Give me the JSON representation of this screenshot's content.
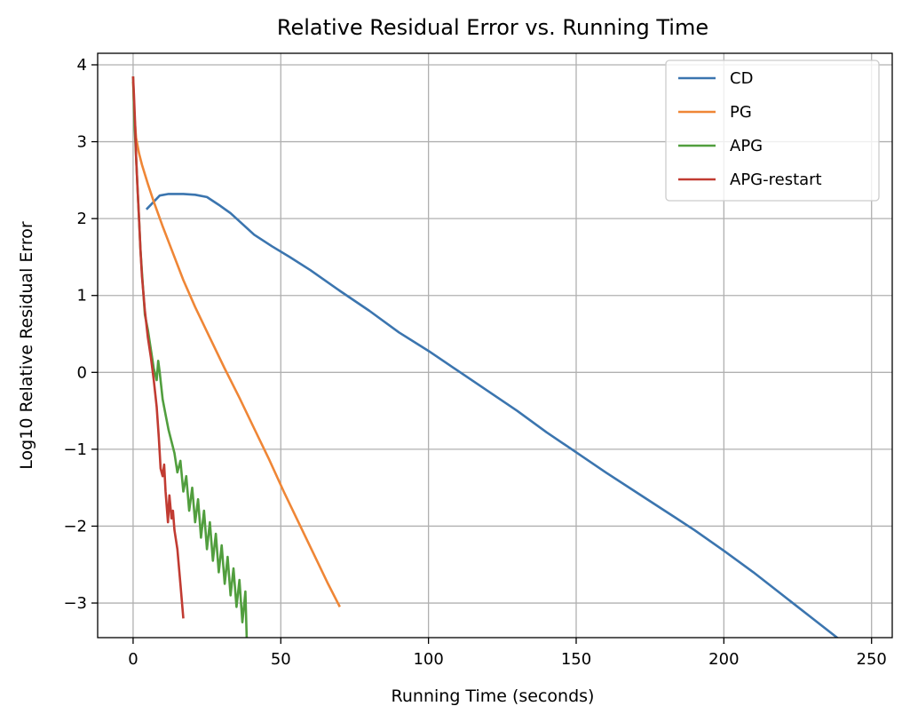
{
  "chart_data": {
    "type": "line",
    "title": "Relative Residual Error vs. Running Time",
    "xlabel": "Running Time (seconds)",
    "ylabel": "Log10 Relative Residual Error",
    "xlim": [
      -12,
      257
    ],
    "ylim": [
      -3.45,
      4.15
    ],
    "xticks": [
      0,
      50,
      100,
      150,
      200,
      250
    ],
    "xtick_labels": [
      "0",
      "50",
      "100",
      "150",
      "200",
      "250"
    ],
    "yticks": [
      -3,
      -2,
      -1,
      0,
      1,
      2,
      3,
      4
    ],
    "ytick_labels": [
      "−3",
      "−2",
      "−1",
      "0",
      "1",
      "2",
      "3",
      "4"
    ],
    "grid": true,
    "legend_position": "top-right",
    "series": [
      {
        "name": "CD",
        "color": "#3b75af",
        "x": [
          4.5,
          9,
          12,
          17,
          21,
          25,
          29,
          33,
          37,
          41,
          47,
          53,
          60,
          70,
          80,
          90,
          100,
          110,
          120,
          130,
          140,
          150,
          160,
          170,
          180,
          190,
          200,
          210,
          220,
          230,
          240,
          245
        ],
        "y": [
          2.12,
          2.3,
          2.32,
          2.32,
          2.31,
          2.28,
          2.18,
          2.07,
          1.93,
          1.79,
          1.64,
          1.5,
          1.33,
          1.06,
          0.8,
          0.52,
          0.28,
          0.02,
          -0.24,
          -0.5,
          -0.78,
          -1.04,
          -1.3,
          -1.55,
          -1.8,
          -2.05,
          -2.32,
          -2.6,
          -2.9,
          -3.2,
          -3.5,
          -3.65
        ]
      },
      {
        "name": "PG",
        "color": "#ef8636",
        "x": [
          0,
          0.5,
          1,
          2,
          3,
          5,
          7,
          10,
          13,
          17,
          21,
          26,
          31,
          36,
          41,
          46,
          51,
          56,
          61,
          66,
          70
        ],
        "y": [
          3.78,
          3.3,
          3.05,
          2.85,
          2.7,
          2.45,
          2.22,
          1.9,
          1.6,
          1.2,
          0.85,
          0.45,
          0.05,
          -0.33,
          -0.73,
          -1.13,
          -1.55,
          -1.95,
          -2.35,
          -2.75,
          -3.05
        ]
      },
      {
        "name": "APG",
        "color": "#519e3e",
        "x": [
          0,
          0.5,
          1,
          1.5,
          2,
          2.5,
          3,
          4,
          5,
          6,
          7,
          8,
          8.5,
          9,
          10,
          11,
          12,
          13,
          14,
          15,
          16,
          17,
          18,
          19,
          20,
          21,
          22,
          23,
          24,
          25,
          26,
          27,
          28,
          29,
          30,
          31,
          32,
          33,
          34,
          35,
          36,
          37,
          38,
          38.5,
          39
        ],
        "y": [
          3.85,
          3.2,
          2.8,
          2.4,
          2.0,
          1.6,
          1.3,
          0.75,
          0.55,
          0.3,
          0.05,
          -0.1,
          0.15,
          0.0,
          -0.35,
          -0.55,
          -0.75,
          -0.9,
          -1.05,
          -1.3,
          -1.15,
          -1.55,
          -1.35,
          -1.8,
          -1.5,
          -1.95,
          -1.65,
          -2.15,
          -1.8,
          -2.3,
          -1.95,
          -2.45,
          -2.1,
          -2.6,
          -2.25,
          -2.75,
          -2.4,
          -2.9,
          -2.55,
          -3.05,
          -2.7,
          -3.25,
          -2.85,
          -3.5,
          -3.8
        ]
      },
      {
        "name": "APG-restart",
        "color": "#c13b32",
        "x": [
          0,
          0.3,
          0.7,
          1,
          1.5,
          2,
          2.5,
          3,
          4,
          5,
          6,
          7,
          8,
          8.7,
          9.3,
          10,
          10.5,
          11,
          11.8,
          12.3,
          13,
          13.5,
          14,
          15,
          16,
          17
        ],
        "y": [
          3.85,
          3.6,
          3.2,
          2.8,
          2.4,
          2.0,
          1.6,
          1.25,
          0.8,
          0.45,
          0.2,
          -0.1,
          -0.45,
          -0.85,
          -1.25,
          -1.35,
          -1.2,
          -1.55,
          -1.95,
          -1.6,
          -1.9,
          -1.8,
          -2.05,
          -2.3,
          -2.75,
          -3.2
        ]
      }
    ]
  }
}
